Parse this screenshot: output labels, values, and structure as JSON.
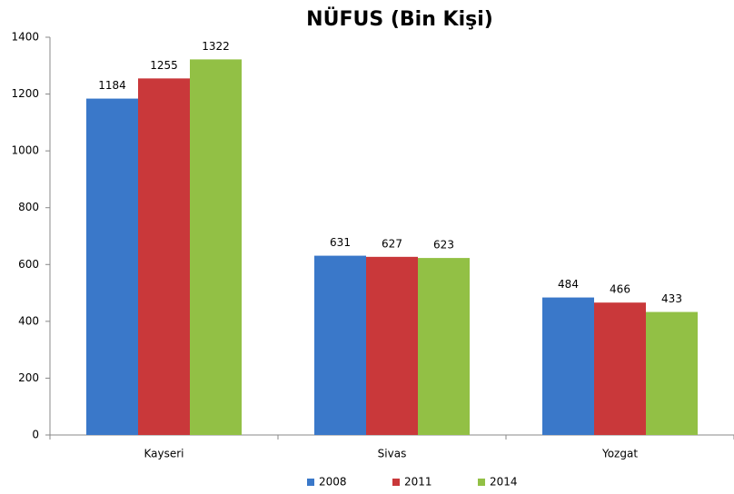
{
  "chart_data": {
    "type": "bar",
    "title": "NÜFUS (Bin Kişi)",
    "categories": [
      "Kayseri",
      "Sivas",
      "Yozgat"
    ],
    "series": [
      {
        "name": "2008",
        "color": "#3a78c9",
        "values": [
          1184,
          631,
          484
        ]
      },
      {
        "name": "2011",
        "color": "#c9383a",
        "values": [
          1255,
          627,
          466
        ]
      },
      {
        "name": "2014",
        "color": "#92c045",
        "values": [
          1322,
          623,
          433
        ]
      }
    ],
    "ylim": [
      0,
      1400
    ],
    "yticks": [
      0,
      200,
      400,
      600,
      800,
      1000,
      1200,
      1400
    ],
    "grid": false,
    "legend": "bottom"
  }
}
